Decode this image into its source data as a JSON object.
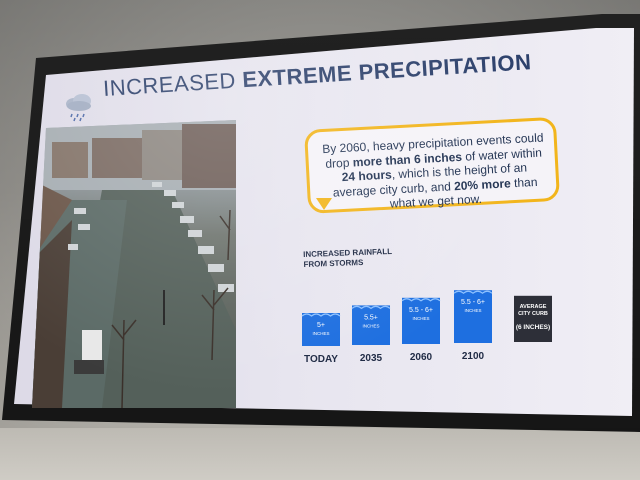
{
  "slide": {
    "title_prefix": "INCREASED",
    "title_bold": "EXTREME PRECIPITATION",
    "callout": {
      "text_1": "By 2060, heavy precipitation events could drop ",
      "bold_1": "more than 6 inches",
      "text_2": " of water within ",
      "bold_2": "24 hours",
      "text_3": ", which is the height of an average city curb, and ",
      "bold_3": "20% more",
      "text_4": " than what we get now."
    },
    "chart_heading_1": "INCREASED RAINFALL",
    "chart_heading_2": "FROM STORMS"
  },
  "icons": {
    "weather": "cloud-rain-icon"
  },
  "colors": {
    "bar": "#1e6fe0",
    "curb": "#2d2f38",
    "callout_border": "#f2b51c",
    "title": "#2b3f6a"
  },
  "chart_data": {
    "type": "bar",
    "title": "INCREASED RAINFALL FROM STORMS",
    "categories": [
      "TODAY",
      "2035",
      "2060",
      "2100",
      ""
    ],
    "values": [
      5,
      5.5,
      6,
      6.5,
      6
    ],
    "bar_labels": [
      "5+",
      "5.5+",
      "5.5 - 6+",
      "5.5 - 6+",
      "AVERAGE CITY CURB"
    ],
    "bar_sublabels": [
      "INCHES",
      "INCHES",
      "INCHES",
      "INCHES",
      "(6 INCHES)"
    ],
    "units": "inches"
  }
}
